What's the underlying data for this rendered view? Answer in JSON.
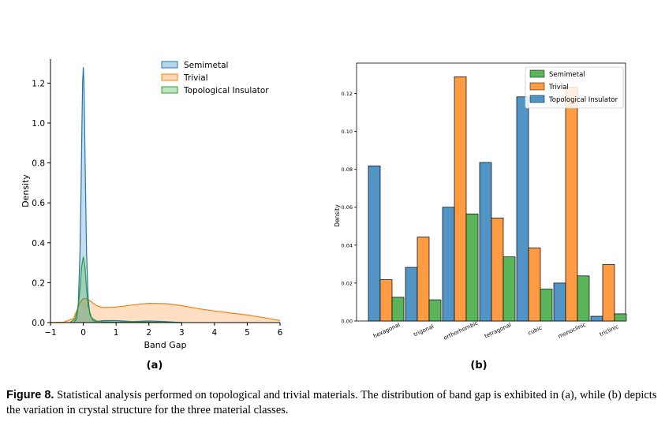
{
  "panel_labels": [
    "(a)",
    "(b)"
  ],
  "caption": {
    "label": "Figure 8.",
    "text": "Statistical analysis performed on topological and trivial materials. The distribution of band gap is exhibited in (a), while (b) depicts the variation in crystal structure for the three material classes."
  },
  "colors": {
    "blue": "#1f77b4",
    "orange": "#ff7f0e",
    "green": "#2ca02c"
  },
  "chart_data": [
    {
      "type": "area",
      "xlabel": "Band Gap",
      "ylabel": "Density",
      "xlim": [
        -1,
        6
      ],
      "ylim": [
        0,
        1.32
      ],
      "xticks": [
        -1,
        0,
        1,
        2,
        3,
        4,
        5,
        6
      ],
      "yticks": [
        0.0,
        0.2,
        0.4,
        0.6,
        0.8,
        1.0,
        1.2
      ],
      "legend_position": "top-center",
      "series": [
        {
          "name": "Semimetal",
          "color": "#1f77b4",
          "x": [
            -0.3,
            -0.2,
            -0.15,
            -0.1,
            -0.07,
            -0.04,
            -0.02,
            0.0,
            0.02,
            0.04,
            0.07,
            0.1,
            0.15,
            0.2,
            0.3,
            0.4,
            0.6,
            1.0,
            1.5,
            2.0,
            2.5,
            3.0
          ],
          "y": [
            0.0,
            0.02,
            0.1,
            0.35,
            0.65,
            1.0,
            1.2,
            1.28,
            1.2,
            1.0,
            0.65,
            0.35,
            0.12,
            0.04,
            0.01,
            0.005,
            0.01,
            0.01,
            0.005,
            0.008,
            0.005,
            0.0
          ]
        },
        {
          "name": "Trivial",
          "color": "#ff7f0e",
          "x": [
            -1.0,
            -0.6,
            -0.3,
            -0.2,
            -0.1,
            0.0,
            0.1,
            0.2,
            0.4,
            0.6,
            1.0,
            1.5,
            2.0,
            2.5,
            3.0,
            3.5,
            4.0,
            4.5,
            5.0,
            5.5,
            6.0
          ],
          "y": [
            0.0,
            0.002,
            0.02,
            0.06,
            0.1,
            0.12,
            0.12,
            0.11,
            0.085,
            0.075,
            0.078,
            0.088,
            0.097,
            0.095,
            0.085,
            0.07,
            0.058,
            0.048,
            0.038,
            0.025,
            0.01
          ]
        },
        {
          "name": "Topological Insulator",
          "color": "#2ca02c",
          "x": [
            -0.4,
            -0.25,
            -0.15,
            -0.1,
            -0.05,
            0.0,
            0.05,
            0.1,
            0.15,
            0.25,
            0.4,
            0.6,
            1.0,
            1.5,
            2.0,
            3.0
          ],
          "y": [
            0.0,
            0.02,
            0.08,
            0.17,
            0.28,
            0.33,
            0.28,
            0.17,
            0.08,
            0.025,
            0.008,
            0.004,
            0.002,
            0.004,
            0.002,
            0.0
          ]
        }
      ]
    },
    {
      "type": "bar",
      "ylabel": "Density",
      "categories": [
        "hexagonal",
        "trigonal",
        "orthorhombic",
        "tetragonal",
        "cubic",
        "monoclinic",
        "triclinic"
      ],
      "ylim": [
        0,
        0.136
      ],
      "yticks": [
        0.0,
        0.02,
        0.04,
        0.06,
        0.08,
        0.1,
        0.12
      ],
      "legend_position": "top-right",
      "series": [
        {
          "name": "Semimetal",
          "color": "#2ca02c",
          "values": [
            0.0125,
            0.0112,
            0.0565,
            0.0338,
            0.0168,
            0.0238,
            0.0038
          ]
        },
        {
          "name": "Trivial",
          "color": "#ff7f0e",
          "values": [
            0.0218,
            0.0443,
            0.1288,
            0.0543,
            0.0386,
            0.1233,
            0.0298
          ]
        },
        {
          "name": "Topological Insulator",
          "color": "#1f77b4",
          "values": [
            0.0818,
            0.0283,
            0.06,
            0.0836,
            0.1182,
            0.02,
            0.0025
          ]
        }
      ]
    }
  ]
}
